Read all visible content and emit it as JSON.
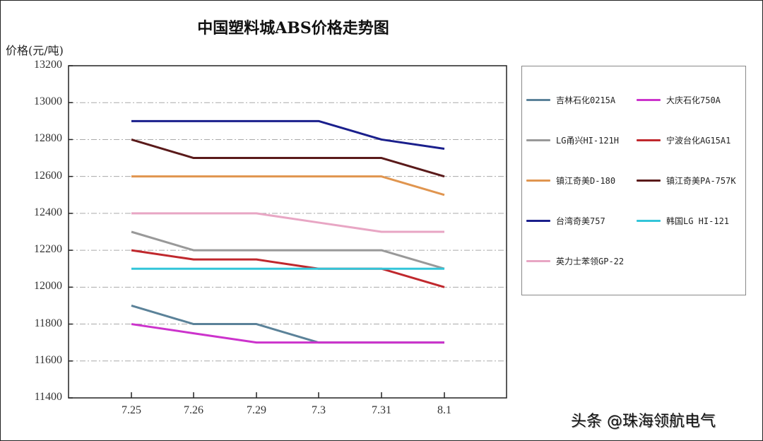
{
  "chart_data": {
    "type": "line",
    "title": "中国塑料城ABS价格走势图",
    "xlabel": "",
    "ylabel": "价格(元/吨)",
    "ylim": [
      11400,
      13200
    ],
    "yticks": [
      11400,
      11600,
      11800,
      12000,
      12200,
      12400,
      12600,
      12800,
      13000,
      13200
    ],
    "grid": "horizontal dash-dot",
    "legend_position": "right",
    "categories": [
      "7.25",
      "7.26",
      "7.29",
      "7.3",
      "7.31",
      "8.1"
    ],
    "series": [
      {
        "name": "吉林石化0215A",
        "color": "#5b8299",
        "values": [
          11900,
          11800,
          11800,
          11700,
          11700,
          11700
        ]
      },
      {
        "name": "大庆石化750A",
        "color": "#cc33cc",
        "values": [
          11800,
          11750,
          11700,
          11700,
          11700,
          11700
        ]
      },
      {
        "name": "LG甬兴HI-121H",
        "color": "#999999",
        "values": [
          12300,
          12200,
          12200,
          12200,
          12200,
          12100
        ]
      },
      {
        "name": "宁波台化AG15A1",
        "color": "#c0282d",
        "values": [
          12200,
          12150,
          12150,
          12100,
          12100,
          12000
        ]
      },
      {
        "name": "镇江奇美D-180",
        "color": "#e0954f",
        "values": [
          12600,
          12600,
          12600,
          12600,
          12600,
          12500
        ]
      },
      {
        "name": "镇江奇美PA-757K",
        "color": "#5a1a1a",
        "values": [
          12800,
          12700,
          12700,
          12700,
          12700,
          12600
        ]
      },
      {
        "name": "台湾奇美757",
        "color": "#1a1f8c",
        "values": [
          12900,
          12900,
          12900,
          12900,
          12800,
          12750
        ]
      },
      {
        "name": "韩国LG HI-121",
        "color": "#33c5d9",
        "values": [
          12100,
          12100,
          12100,
          12100,
          12100,
          12100
        ]
      },
      {
        "name": "英力士苯领GP-22",
        "color": "#e8a6c4",
        "values": [
          12400,
          12400,
          12400,
          12350,
          12300,
          12300
        ]
      }
    ]
  },
  "labels": {
    "title": "中国塑料城ABS价格走势图",
    "ylabel": "价格(元/吨)",
    "watermark": "头条 @珠海领航电气"
  }
}
